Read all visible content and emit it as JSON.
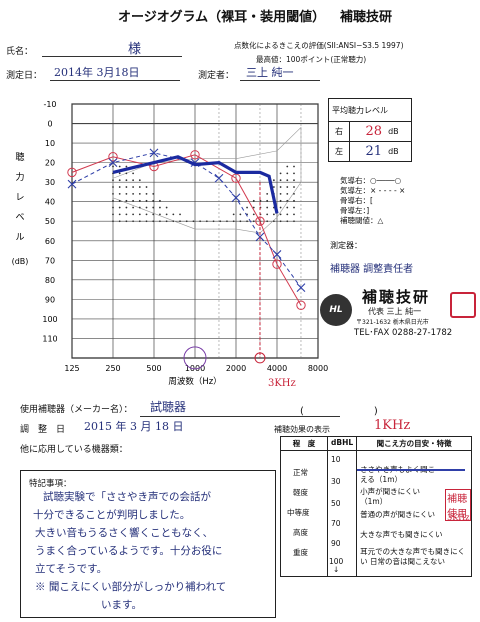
{
  "header": {
    "title": "オージオグラム（裸耳・装用閾値）",
    "company": "補聴技研",
    "name_label": "氏名：",
    "name_value": "様",
    "scoring_title": "点数化によるきこえの評価(SII:ANSI−S3.5 1997)",
    "max_value": "最高値：100ポイント(正常聴力)",
    "date_label": "測定日：",
    "date_value": "2014年 3月18日",
    "tester_label": "測定者：",
    "tester_value": "三上 純一"
  },
  "avg_table": {
    "title": "平均聴力レベル",
    "rows": [
      {
        "side": "右",
        "value": "28",
        "unit": "dB"
      },
      {
        "side": "左",
        "value": "21",
        "unit": "dB"
      }
    ]
  },
  "legend": {
    "items": [
      "気導右：○────○",
      "気導左：× - - - - ×",
      "骨導右：[",
      "骨導左：]",
      "補聴閾値：△"
    ],
    "tester_label": "測定器：",
    "tester_value": "補聴器 調整責任者"
  },
  "stamp": {
    "name": "補聴技研",
    "rep": "代表 三上 純一",
    "address": "〒321-1632 栃木県日光市",
    "tel": "TEL･FAX 0288-27-1782"
  },
  "chart_data": {
    "type": "line",
    "y_axis_label": [
      "聴",
      "力",
      "レ",
      "ベ",
      "ル",
      "(dB)"
    ],
    "x_axis_label": "周波数（Hz）",
    "x_ticks": [
      "125",
      "250",
      "500",
      "1000",
      "2000",
      "4000",
      "8000"
    ],
    "y_ticks": [
      "-10",
      "0",
      "10",
      "20",
      "30",
      "40",
      "50",
      "60",
      "70",
      "80",
      "90",
      "100",
      "110"
    ],
    "ylim": [
      -10,
      120
    ],
    "series": [
      {
        "name": "気導右",
        "color": "#d23a4f",
        "marker": "circle",
        "dash": false,
        "points": [
          [
            125,
            25
          ],
          [
            250,
            17
          ],
          [
            500,
            22
          ],
          [
            1000,
            16
          ],
          [
            2000,
            28
          ],
          [
            3000,
            50
          ],
          [
            4000,
            72
          ],
          [
            6000,
            93
          ]
        ]
      },
      {
        "name": "気導左",
        "color": "#2f3fa8",
        "marker": "x",
        "dash": true,
        "points": [
          [
            125,
            31
          ],
          [
            250,
            20
          ],
          [
            500,
            15
          ],
          [
            1000,
            20
          ],
          [
            1500,
            28
          ],
          [
            2000,
            38
          ],
          [
            3000,
            58
          ],
          [
            4000,
            67
          ],
          [
            6000,
            84
          ]
        ]
      },
      {
        "name": "補聴閾値",
        "color": "#1b2aa0",
        "marker": "none",
        "dash": false,
        "points": [
          [
            250,
            25
          ],
          [
            500,
            20
          ],
          [
            750,
            17
          ],
          [
            1000,
            21
          ],
          [
            1500,
            20
          ],
          [
            2000,
            25
          ],
          [
            2500,
            25
          ],
          [
            3000,
            25
          ],
          [
            3500,
            27
          ],
          [
            4000,
            46
          ]
        ]
      }
    ],
    "annotations": [
      "3KHz"
    ]
  },
  "device": {
    "label": "使用補聴器（メーカー名）：",
    "value": "試聴器",
    "date_label": "調　整　日",
    "date_value": "2015 年 3 月 18 日",
    "other_label": "他に応用している機器類：",
    "effect_label": "補聴効果の表示",
    "effect_value": "1KHz"
  },
  "effect_table": {
    "headers": [
      "程　度",
      "dBHL",
      "聞こえ方の目安・特徴"
    ],
    "rows": [
      {
        "degree": "正常",
        "db": "10",
        "desc": "ささやき声もよく聞こえる（1m）"
      },
      {
        "degree": "軽度",
        "db": "30",
        "desc": "小声が聞きにくい（1m）"
      },
      {
        "degree": "中等度",
        "db": "50",
        "desc": "普通の声が聞きにくい"
      },
      {
        "degree": "高度",
        "db": "70",
        "desc": "大きな声でも聞きにくい"
      },
      {
        "degree": "重度",
        "db": "90",
        "desc": "耳元での大きな声でも聞きにくい 日常の音は聞こえない"
      }
    ],
    "extra_db": "100",
    "notes_hw": [
      "補聴使用",
      "3KHz",
      "裸耳"
    ]
  },
  "notes": {
    "title": "特記事項：",
    "lines": [
      "試聴実験で「ささやき声での会話が",
      "十分できることが判明しました。",
      "大きい音もうるさく響くこともなく、",
      "うまく合っているようです。十分お役に",
      "立てそうです。",
      "※ 聞こえにくい部分がしっかり補われて",
      "います。"
    ]
  }
}
